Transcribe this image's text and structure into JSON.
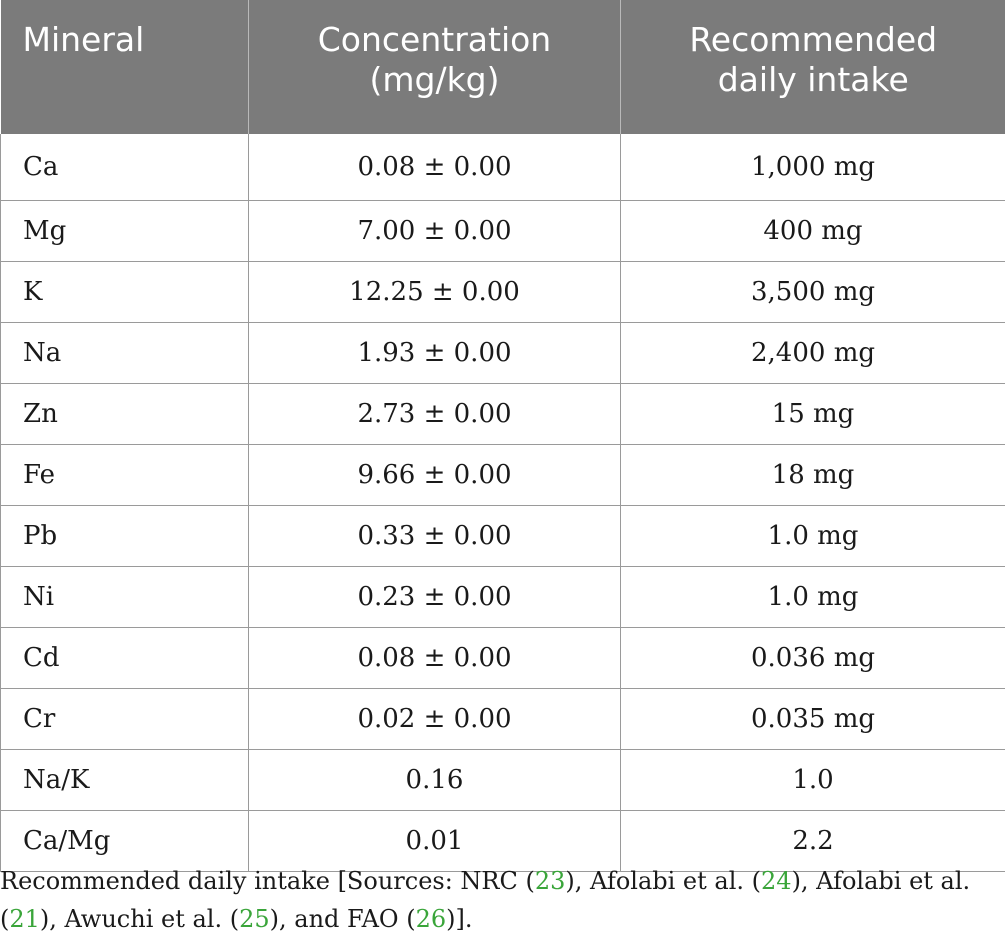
{
  "table": {
    "headers": [
      "Mineral",
      "Concentration\n(mg/kg)",
      "Recommended\ndaily intake"
    ],
    "header_lines": {
      "mineral": "Mineral",
      "concentration_1": "Concentration",
      "concentration_2": "(mg/kg)",
      "rdi_1": "Recommended",
      "rdi_2": "daily intake"
    },
    "rows": [
      {
        "mineral": "Ca",
        "concentration": "0.08 ± 0.00",
        "rdi": "1,000 mg"
      },
      {
        "mineral": "Mg",
        "concentration": "7.00 ± 0.00",
        "rdi": "400 mg"
      },
      {
        "mineral": "K",
        "concentration": "12.25 ± 0.00",
        "rdi": "3,500 mg"
      },
      {
        "mineral": "Na",
        "concentration": "1.93 ± 0.00",
        "rdi": "2,400 mg"
      },
      {
        "mineral": "Zn",
        "concentration": "2.73 ± 0.00",
        "rdi": "15 mg"
      },
      {
        "mineral": "Fe",
        "concentration": "9.66 ± 0.00",
        "rdi": "18 mg"
      },
      {
        "mineral": "Pb",
        "concentration": "0.33 ± 0.00",
        "rdi": "1.0 mg"
      },
      {
        "mineral": "Ni",
        "concentration": "0.23 ± 0.00",
        "rdi": "1.0 mg"
      },
      {
        "mineral": "Cd",
        "concentration": "0.08 ± 0.00",
        "rdi": "0.036 mg"
      },
      {
        "mineral": "Cr",
        "concentration": "0.02 ± 0.00",
        "rdi": "0.035 mg"
      },
      {
        "mineral": "Na/K",
        "concentration": "0.16",
        "rdi": "1.0"
      },
      {
        "mineral": "Ca/Mg",
        "concentration": "0.01",
        "rdi": "2.2"
      }
    ]
  },
  "footnote": {
    "t1": "Recommended daily intake [Sources: NRC (",
    "r1": "23",
    "t2": "), Afolabi et al. (",
    "r2": "24",
    "t3": "), Afolabi et al. (",
    "r3": "21",
    "t4": "), Awuchi et al. (",
    "r4": "25",
    "t5": "), and FAO (",
    "r5": "26",
    "t6": ")]."
  },
  "colors": {
    "header_bg": "#7b7b7b",
    "header_text": "#ffffff",
    "reference_link": "#3aa53a"
  }
}
